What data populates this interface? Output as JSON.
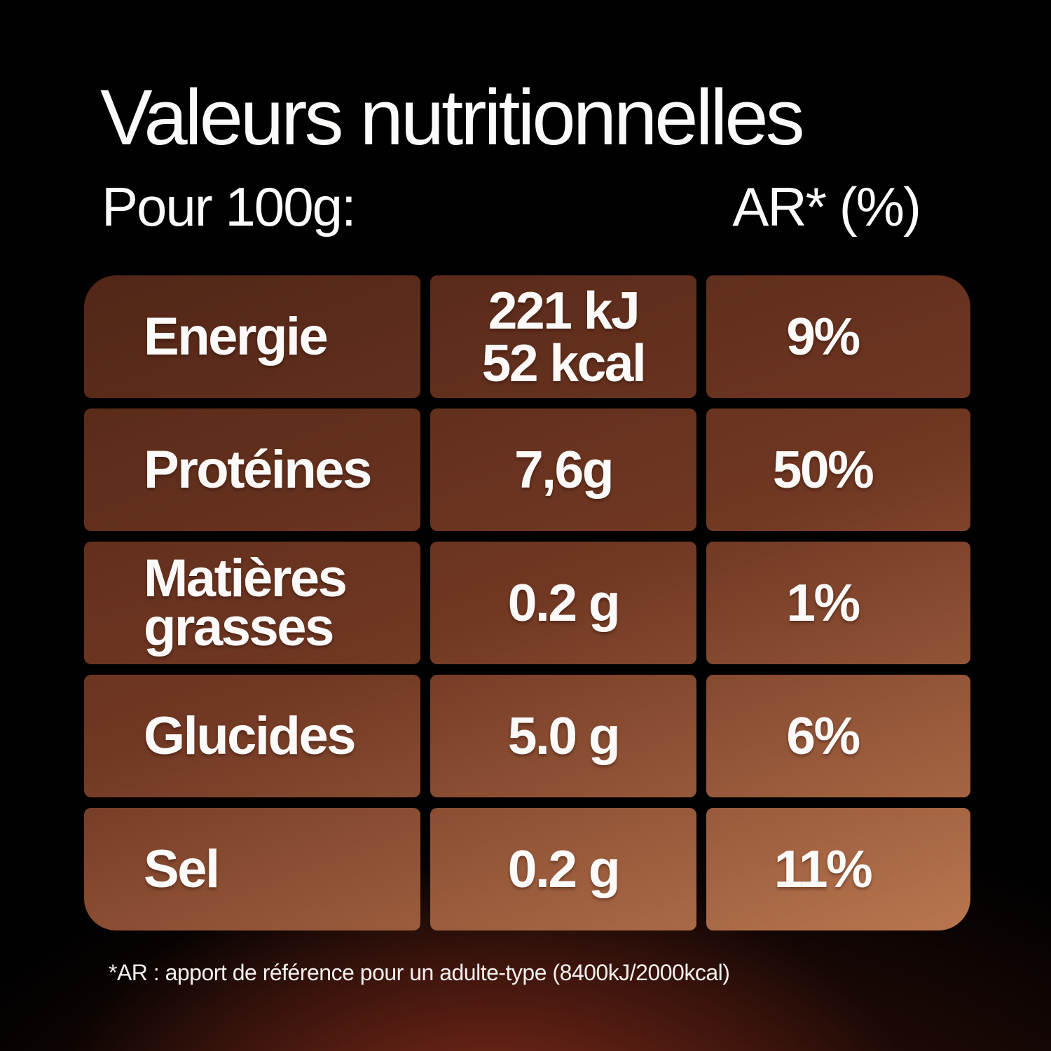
{
  "header": {
    "title": "Valeurs nutritionnelles",
    "serving_label": "Pour 100g:",
    "reference_label": "AR* (%)"
  },
  "table": {
    "columns": [
      "nutrient",
      "amount_per_100g",
      "reference_intake_percent"
    ],
    "rows": [
      {
        "nutrient": "Energie",
        "amount_lines": [
          "221 kJ",
          "52 kcal"
        ],
        "reference_percent": "9%"
      },
      {
        "nutrient": "Protéines",
        "amount_lines": [
          "7,6g"
        ],
        "reference_percent": "50%"
      },
      {
        "nutrient": "Matières grasses",
        "amount_lines": [
          "0.2 g"
        ],
        "reference_percent": "1%"
      },
      {
        "nutrient": "Glucides",
        "amount_lines": [
          "5.0 g"
        ],
        "reference_percent": "6%"
      },
      {
        "nutrient": "Sel",
        "amount_lines": [
          "0.2 g"
        ],
        "reference_percent": "11%"
      }
    ]
  },
  "footnote": "*AR : apport de référence pour un adulte-type (8400kJ/2000kcal)",
  "colors": {
    "background": "#020101",
    "cell_gradient_start": "#522617",
    "cell_gradient_mid": "#713823",
    "cell_gradient_end": "#b9764f",
    "text": "#fcfaf8",
    "glow": "#852e1c"
  }
}
